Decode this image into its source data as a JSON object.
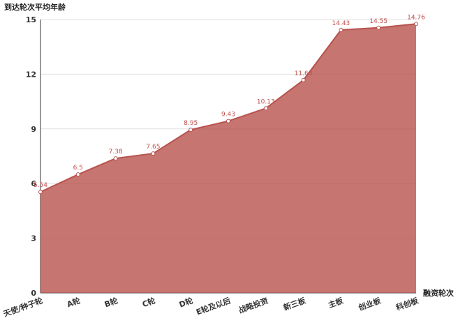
{
  "chart_data": {
    "type": "area",
    "y_axis_title": "到达轮次平均年龄",
    "x_axis_title": "融资轮次",
    "categories": [
      "天使/种子轮",
      "A轮",
      "B轮",
      "C轮",
      "D轮",
      "E轮及以后",
      "战略投资",
      "新三板",
      "主板",
      "创业板",
      "科创板"
    ],
    "series": [
      {
        "name": "到达轮次平均年龄",
        "color": "#b8524d",
        "values": [
          5.54,
          6.5,
          7.38,
          7.65,
          8.95,
          9.43,
          10.13,
          11.68,
          14.43,
          14.55,
          14.76
        ]
      }
    ],
    "ylim": [
      0,
      15
    ],
    "yticks": [
      0,
      3,
      6,
      9,
      12,
      15
    ],
    "grid": true
  }
}
